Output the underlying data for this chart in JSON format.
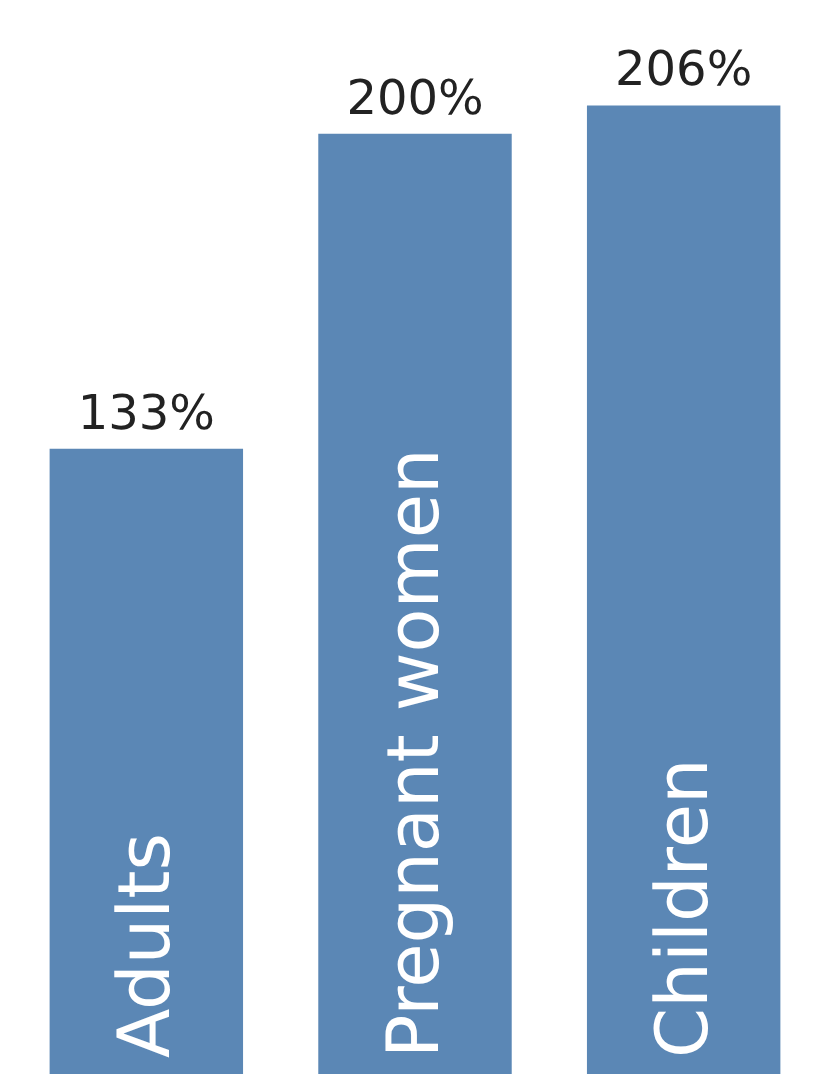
{
  "chart_data": {
    "type": "bar",
    "categories": [
      "Adults",
      "Pregnant women",
      "Children"
    ],
    "series": [
      {
        "color": "#5b87b5",
        "values": [
          133,
          200,
          206
        ],
        "value_labels": [
          "133%",
          "200%",
          "206%"
        ]
      }
    ]
  }
}
